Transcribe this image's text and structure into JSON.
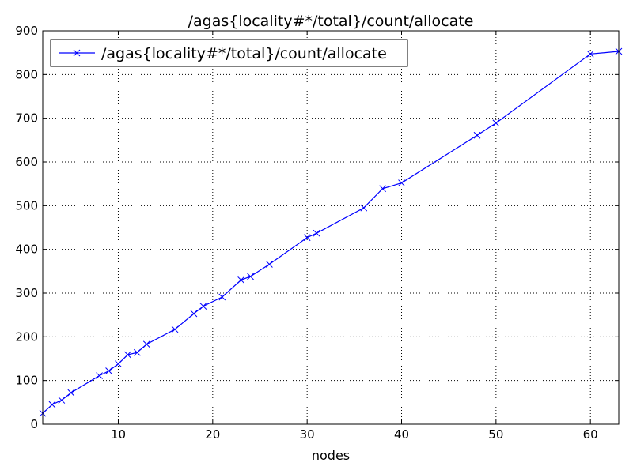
{
  "colors": {
    "line": "#0000ff",
    "frame": "#000000",
    "grid": "#000000",
    "background": "#ffffff"
  },
  "icons": {
    "marker": "x-marker-icon"
  },
  "chart_data": {
    "type": "line",
    "title": "/agas{locality#*/total}/count/allocate",
    "xlabel": "nodes",
    "ylabel": "",
    "xlim": [
      2,
      63
    ],
    "ylim": [
      0,
      900
    ],
    "xticks": [
      10,
      20,
      30,
      40,
      50,
      60
    ],
    "yticks": [
      0,
      100,
      200,
      300,
      400,
      500,
      600,
      700,
      800,
      900
    ],
    "grid": true,
    "legend": {
      "placement": "upper-left",
      "entries": [
        "/agas{locality#*/total}/count/allocate"
      ]
    },
    "series": [
      {
        "name": "/agas{locality#*/total}/count/allocate",
        "marker": "x",
        "x": [
          2,
          3,
          4,
          5,
          8,
          9,
          10,
          11,
          12,
          13,
          16,
          18,
          19,
          21,
          23,
          24,
          26,
          30,
          31,
          36,
          38,
          40,
          48,
          50,
          60,
          63
        ],
        "y": [
          25,
          45,
          55,
          72,
          111,
          122,
          138,
          159,
          164,
          183,
          217,
          253,
          270,
          291,
          330,
          338,
          366,
          427,
          437,
          495,
          539,
          552,
          661,
          689,
          847,
          853
        ]
      }
    ]
  }
}
